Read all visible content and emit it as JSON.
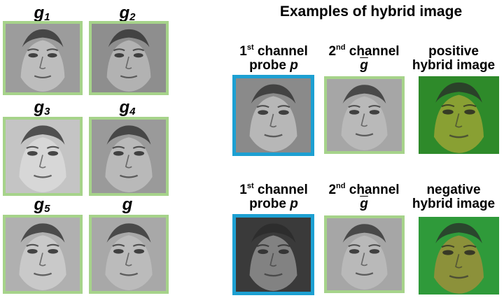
{
  "title": "Examples of hybrid image",
  "gallery": {
    "labels": [
      "g",
      "g",
      "g",
      "g",
      "g",
      "g"
    ],
    "subscripts": [
      "1",
      "2",
      "3",
      "4",
      "5",
      ""
    ],
    "mean_label": "g"
  },
  "columns": {
    "first": {
      "line1_pre": "1",
      "line1_sup": "st",
      "line1_post": " channel",
      "line2_pre": "probe ",
      "line2_var": "p"
    },
    "second": {
      "line1_pre": "2",
      "line1_sup": "nd",
      "line1_post": " channel",
      "line2_var": "g"
    },
    "positive": {
      "line1": "positive",
      "line2": "hybrid image"
    },
    "negative": {
      "line1": "negative",
      "line2": "hybrid image"
    }
  },
  "colors": {
    "gallery_border": "#a6d38a",
    "probe_border": "#1da0d2"
  }
}
